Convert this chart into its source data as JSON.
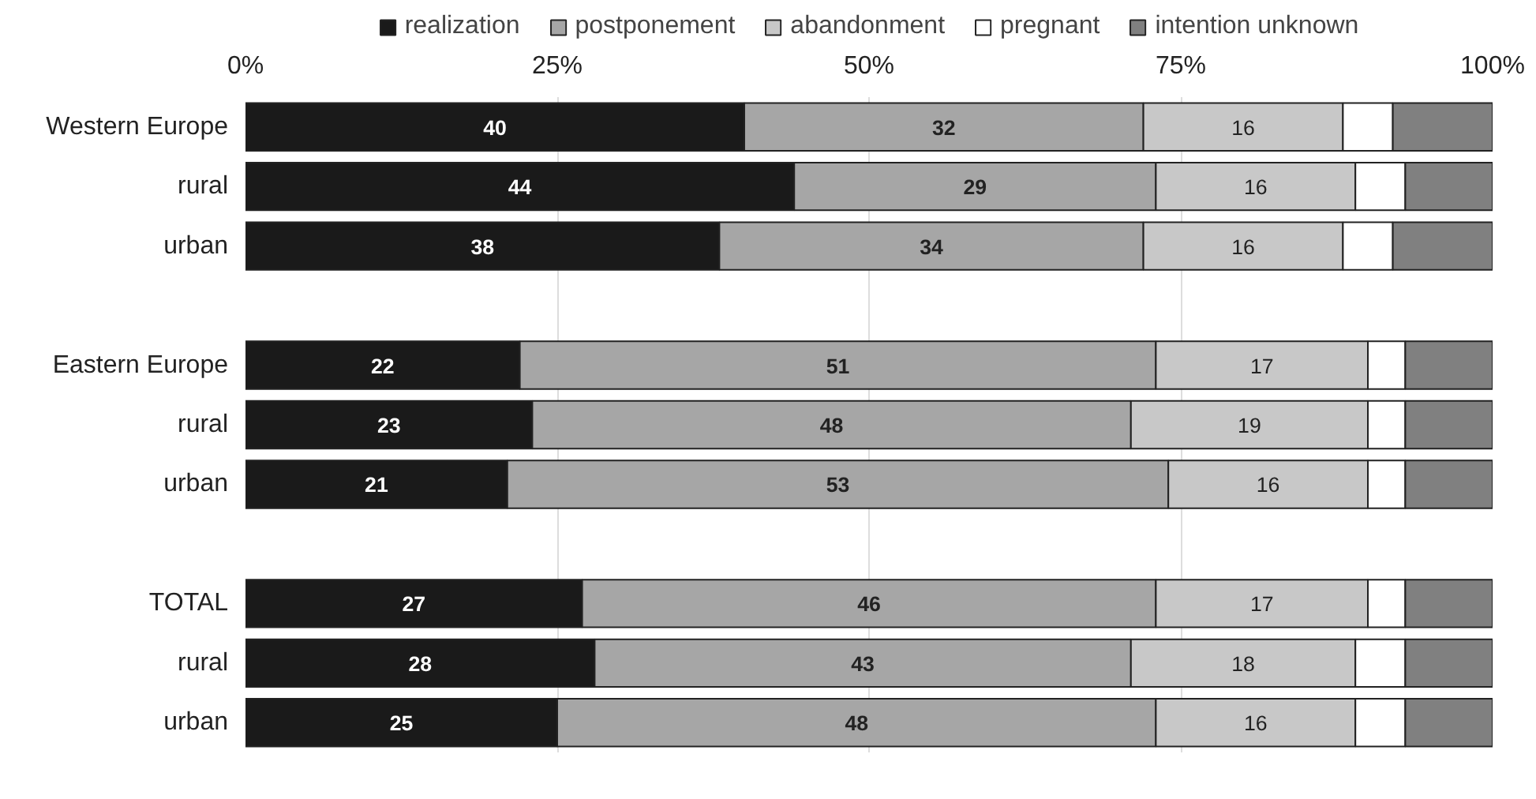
{
  "chart_data": {
    "type": "bar",
    "orientation": "horizontal",
    "stacked": true,
    "categories": [
      "Western Europe",
      "rural",
      "urban",
      null,
      "Eastern Europe",
      "rural",
      "urban",
      null,
      "TOTAL",
      "rural",
      "urban"
    ],
    "series": [
      {
        "name": "realization",
        "color": "#1a1a1a",
        "values": [
          40,
          44,
          38,
          null,
          22,
          23,
          21,
          null,
          27,
          28,
          25
        ],
        "value_labels": [
          "40",
          "44",
          "38",
          null,
          "22",
          "23",
          "21",
          null,
          "27",
          "28",
          "25"
        ]
      },
      {
        "name": "postponement",
        "color": "#a6a6a6",
        "values": [
          32,
          29,
          34,
          null,
          51,
          48,
          53,
          null,
          46,
          43,
          48
        ],
        "value_labels": [
          "32",
          "29",
          "34",
          null,
          "51",
          "48",
          "53",
          null,
          "46",
          "43",
          "48"
        ]
      },
      {
        "name": "abandonment",
        "color": "#c8c8c8",
        "values": [
          16,
          16,
          16,
          null,
          17,
          19,
          16,
          null,
          17,
          18,
          16
        ],
        "value_labels": [
          "16",
          "16",
          "16",
          null,
          "17",
          "19",
          "16",
          null,
          "17",
          "18",
          "16"
        ]
      },
      {
        "name": "pregnant",
        "color": "#ffffff",
        "values": [
          4,
          4,
          4,
          null,
          3,
          3,
          3,
          null,
          3,
          4,
          4
        ]
      },
      {
        "name": "intention unknown",
        "color": "#808080",
        "values": [
          8,
          7,
          8,
          null,
          7,
          7,
          7,
          null,
          7,
          7,
          7
        ]
      }
    ],
    "xlim": [
      0,
      100
    ],
    "xticks": [
      {
        "value": 0,
        "label": "0%"
      },
      {
        "value": 25,
        "label": "25%"
      },
      {
        "value": 50,
        "label": "50%"
      },
      {
        "value": 75,
        "label": "75%"
      },
      {
        "value": 100,
        "label": "100%"
      }
    ],
    "grid": "x",
    "legend": "top"
  }
}
